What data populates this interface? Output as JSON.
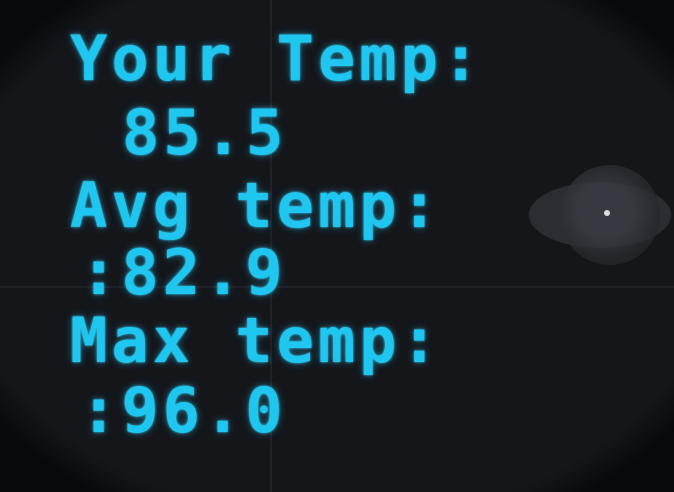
{
  "display": {
    "your_label": "Your Temp:",
    "your_value": "85.5",
    "avg_label": "Avg temp:",
    "avg_value": ":82.9",
    "max_label": "Max temp:",
    "max_value": ":96.0"
  },
  "colors": {
    "text": "#1fc6f0",
    "background": "#07080a"
  }
}
